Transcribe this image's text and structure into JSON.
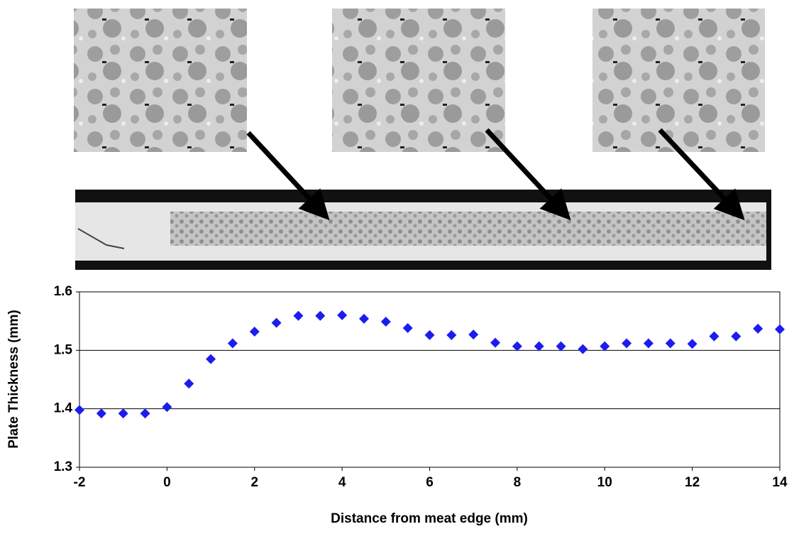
{
  "chart_data": {
    "type": "scatter",
    "xlabel": "Distance from meat edge (mm)",
    "ylabel": "Plate Thickness (mm)",
    "x": [
      -2,
      -1.5,
      -1,
      -0.5,
      0,
      0.5,
      1,
      1.5,
      2,
      2.5,
      3,
      3.5,
      4,
      4.5,
      5,
      5.5,
      6,
      6.5,
      7,
      7.5,
      8,
      8.5,
      9,
      9.5,
      10,
      10.5,
      11,
      11.5,
      12,
      12.5,
      13,
      13.5,
      14
    ],
    "values": [
      1.398,
      1.392,
      1.392,
      1.392,
      1.403,
      1.443,
      1.485,
      1.512,
      1.532,
      1.547,
      1.559,
      1.559,
      1.56,
      1.554,
      1.549,
      1.538,
      1.526,
      1.526,
      1.527,
      1.513,
      1.507,
      1.507,
      1.507,
      1.502,
      1.507,
      1.512,
      1.512,
      1.512,
      1.511,
      1.524,
      1.524,
      1.537,
      1.536
    ],
    "color": "#1c1cf0",
    "xlim": [
      -2,
      14
    ],
    "xticks": [
      -2,
      0,
      2,
      4,
      6,
      8,
      10,
      12,
      14
    ],
    "ylim": [
      1.3,
      1.6
    ],
    "yticks": [
      1.3,
      1.4,
      1.5,
      1.6
    ],
    "grid": true
  }
}
